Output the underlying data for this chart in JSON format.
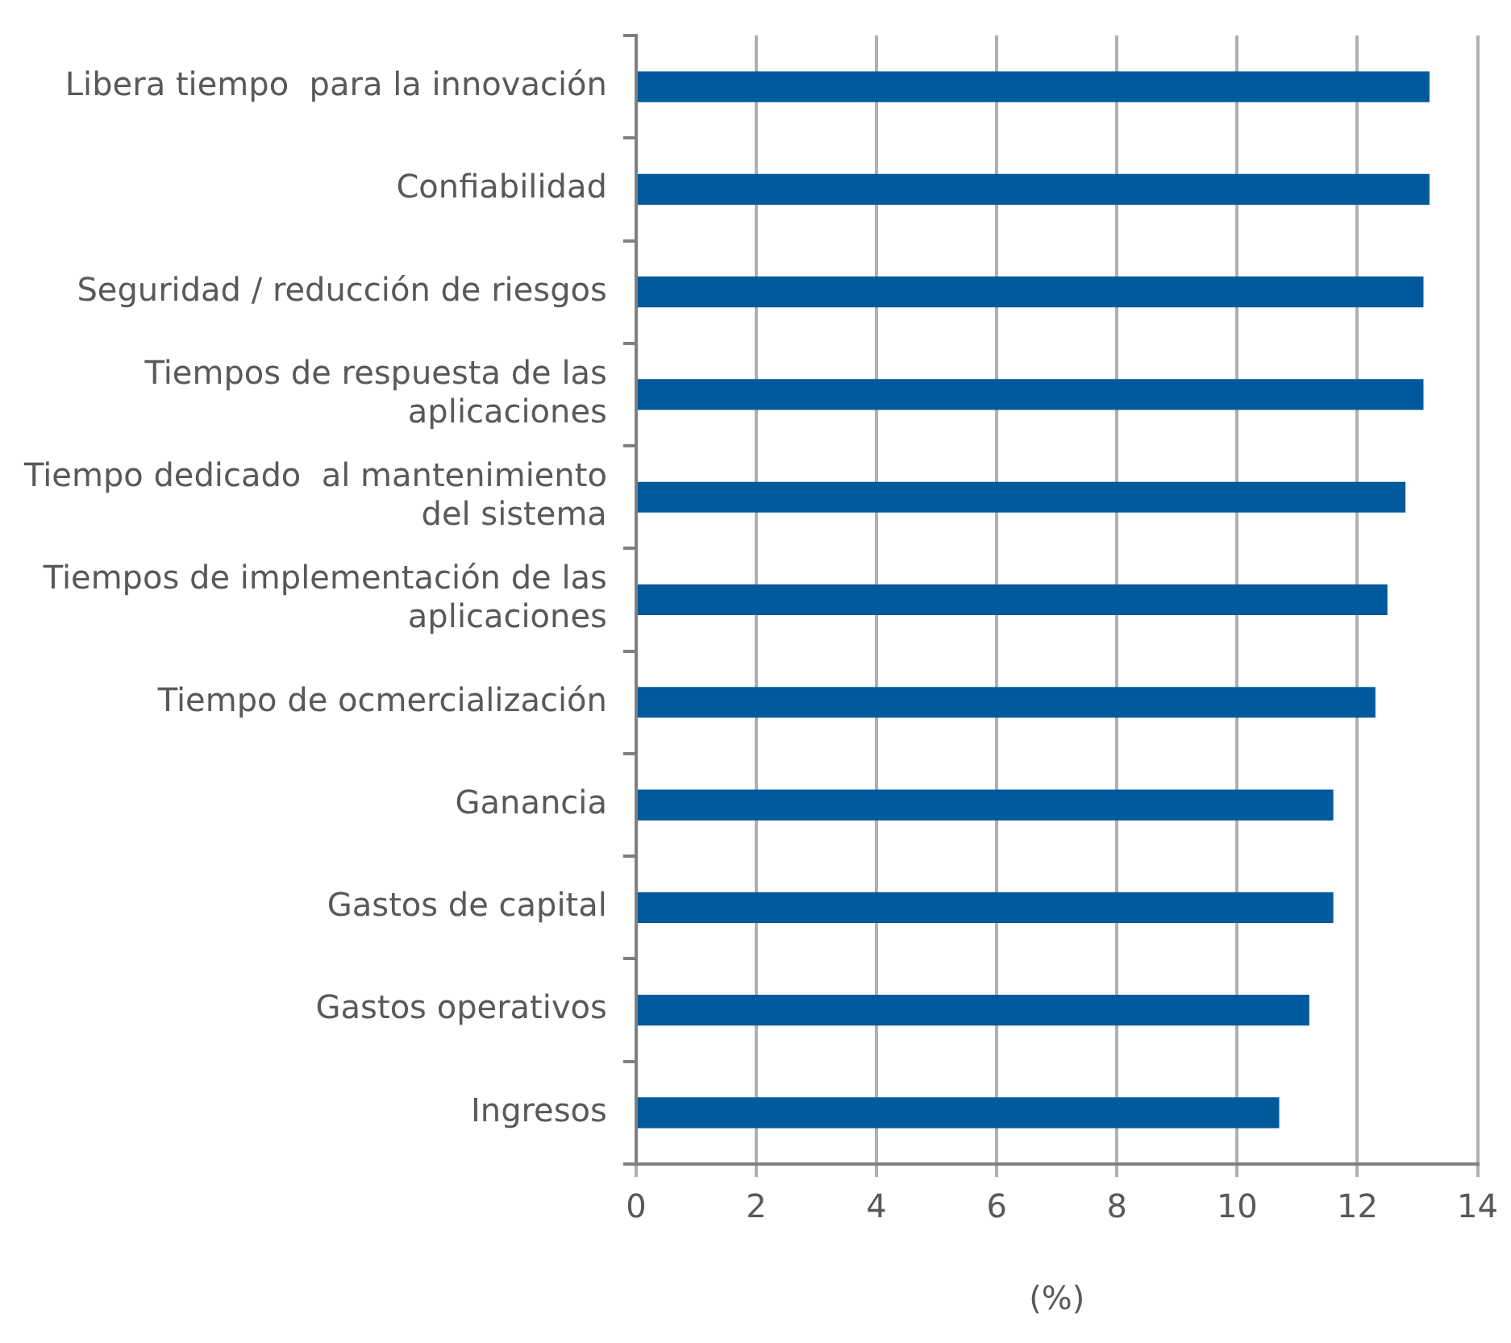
{
  "chart_data": {
    "type": "bar",
    "orientation": "horizontal",
    "xlabel": "(%)",
    "categories": [
      "Libera tiempo  para la innovación",
      "Confiabilidad",
      "Seguridad / reducción de riesgos",
      "Tiempos de respuesta de las aplicaciones",
      "Tiempo dedicado  al mantenimiento del sistema",
      "Tiempos de implementación de las aplicaciones",
      "Tiempo de ocmercialización",
      "Ganancia",
      "Gastos de capital",
      "Gastos operativos",
      "Ingresos"
    ],
    "values": [
      13.2,
      13.2,
      13.1,
      13.1,
      12.8,
      12.5,
      12.3,
      11.6,
      11.6,
      11.2,
      10.7
    ],
    "color": "#005a9c",
    "xlim": [
      0,
      14
    ],
    "xticks": [
      0,
      2,
      4,
      6,
      8,
      10,
      12,
      14
    ],
    "grid": "x",
    "legend": false
  }
}
